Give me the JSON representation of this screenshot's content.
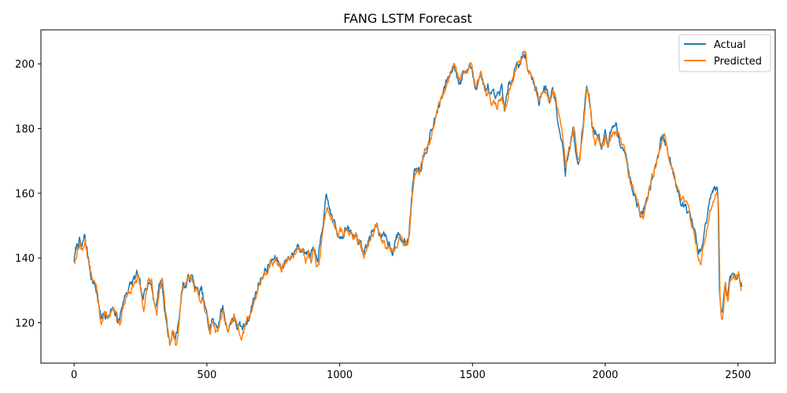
{
  "chart_data": {
    "type": "line",
    "title": "FANG LSTM Forecast",
    "xlabel": "",
    "ylabel": "",
    "xlim": [
      -125,
      2640
    ],
    "ylim": [
      107.5,
      210.5
    ],
    "xticks": [
      0,
      500,
      1000,
      1500,
      2000,
      2500
    ],
    "yticks": [
      120,
      140,
      160,
      180,
      200
    ],
    "grid": false,
    "legend_position": "top-right",
    "key_points": [
      [
        0,
        139
      ],
      [
        10,
        143
      ],
      [
        20,
        145
      ],
      [
        30,
        142
      ],
      [
        40,
        146
      ],
      [
        50,
        141
      ],
      [
        60,
        136
      ],
      [
        70,
        133
      ],
      [
        80,
        131
      ],
      [
        90,
        127
      ],
      [
        100,
        121
      ],
      [
        110,
        122
      ],
      [
        120,
        123
      ],
      [
        130,
        121
      ],
      [
        140,
        123
      ],
      [
        150,
        122
      ],
      [
        160,
        121
      ],
      [
        170,
        120
      ],
      [
        180,
        125
      ],
      [
        200,
        130
      ],
      [
        220,
        132
      ],
      [
        240,
        134
      ],
      [
        250,
        129
      ],
      [
        260,
        125
      ],
      [
        270,
        130
      ],
      [
        280,
        134
      ],
      [
        290,
        132
      ],
      [
        300,
        127
      ],
      [
        310,
        125
      ],
      [
        320,
        132
      ],
      [
        330,
        133
      ],
      [
        340,
        125
      ],
      [
        350,
        118
      ],
      [
        360,
        113
      ],
      [
        370,
        117
      ],
      [
        380,
        114
      ],
      [
        390,
        118
      ],
      [
        400,
        126
      ],
      [
        410,
        132
      ],
      [
        420,
        131
      ],
      [
        430,
        133
      ],
      [
        440,
        134
      ],
      [
        450,
        132
      ],
      [
        460,
        130
      ],
      [
        470,
        128
      ],
      [
        480,
        129
      ],
      [
        490,
        125
      ],
      [
        500,
        121
      ],
      [
        510,
        117
      ],
      [
        520,
        121
      ],
      [
        530,
        118
      ],
      [
        540,
        119
      ],
      [
        550,
        122
      ],
      [
        560,
        124
      ],
      [
        570,
        120
      ],
      [
        580,
        118
      ],
      [
        590,
        120
      ],
      [
        600,
        122
      ],
      [
        610,
        119
      ],
      [
        620,
        118
      ],
      [
        630,
        117
      ],
      [
        640,
        118
      ],
      [
        650,
        121
      ],
      [
        660,
        122
      ],
      [
        670,
        125
      ],
      [
        680,
        128
      ],
      [
        690,
        130
      ],
      [
        700,
        133
      ],
      [
        710,
        135
      ],
      [
        720,
        136
      ],
      [
        730,
        137
      ],
      [
        740,
        138
      ],
      [
        750,
        139
      ],
      [
        760,
        139
      ],
      [
        770,
        138
      ],
      [
        780,
        137
      ],
      [
        790,
        138
      ],
      [
        800,
        139
      ],
      [
        810,
        140
      ],
      [
        820,
        141
      ],
      [
        830,
        142
      ],
      [
        840,
        144
      ],
      [
        850,
        143
      ],
      [
        860,
        145
      ],
      [
        870,
        141
      ],
      [
        880,
        143
      ],
      [
        890,
        140
      ],
      [
        900,
        142
      ],
      [
        910,
        138
      ],
      [
        920,
        140
      ],
      [
        930,
        145
      ],
      [
        940,
        152
      ],
      [
        950,
        157
      ],
      [
        960,
        155
      ],
      [
        970,
        152
      ],
      [
        980,
        150
      ],
      [
        990,
        147
      ],
      [
        1000,
        148
      ],
      [
        1010,
        147
      ],
      [
        1020,
        149
      ],
      [
        1030,
        148
      ],
      [
        1040,
        147
      ],
      [
        1050,
        146
      ],
      [
        1060,
        147
      ],
      [
        1070,
        146
      ],
      [
        1080,
        143
      ],
      [
        1090,
        141
      ],
      [
        1100,
        143
      ],
      [
        1110,
        145
      ],
      [
        1120,
        147
      ],
      [
        1130,
        149
      ],
      [
        1140,
        150
      ],
      [
        1150,
        148
      ],
      [
        1160,
        146
      ],
      [
        1170,
        145
      ],
      [
        1180,
        145
      ],
      [
        1190,
        144
      ],
      [
        1200,
        143
      ],
      [
        1210,
        145
      ],
      [
        1220,
        147
      ],
      [
        1230,
        146
      ],
      [
        1240,
        144
      ],
      [
        1250,
        144
      ],
      [
        1260,
        146
      ],
      [
        1270,
        158
      ],
      [
        1280,
        167
      ],
      [
        1290,
        169
      ],
      [
        1300,
        168
      ],
      [
        1310,
        170
      ],
      [
        1320,
        173
      ],
      [
        1330,
        176
      ],
      [
        1340,
        178
      ],
      [
        1350,
        180
      ],
      [
        1360,
        183
      ],
      [
        1370,
        186
      ],
      [
        1380,
        188
      ],
      [
        1390,
        190
      ],
      [
        1400,
        193
      ],
      [
        1410,
        195
      ],
      [
        1420,
        197
      ],
      [
        1430,
        199
      ],
      [
        1440,
        197
      ],
      [
        1450,
        195
      ],
      [
        1460,
        196
      ],
      [
        1470,
        198
      ],
      [
        1480,
        197
      ],
      [
        1490,
        200
      ],
      [
        1500,
        196
      ],
      [
        1510,
        192
      ],
      [
        1520,
        195
      ],
      [
        1530,
        197
      ],
      [
        1540,
        194
      ],
      [
        1550,
        190
      ],
      [
        1560,
        192
      ],
      [
        1570,
        189
      ],
      [
        1580,
        188
      ],
      [
        1590,
        187
      ],
      [
        1600,
        189
      ],
      [
        1610,
        191
      ],
      [
        1620,
        186
      ],
      [
        1630,
        189
      ],
      [
        1640,
        193
      ],
      [
        1650,
        196
      ],
      [
        1660,
        199
      ],
      [
        1670,
        201
      ],
      [
        1680,
        200
      ],
      [
        1690,
        204
      ],
      [
        1700,
        202
      ],
      [
        1710,
        197
      ],
      [
        1720,
        195
      ],
      [
        1730,
        194
      ],
      [
        1740,
        192
      ],
      [
        1750,
        188
      ],
      [
        1760,
        191
      ],
      [
        1770,
        193
      ],
      [
        1780,
        191
      ],
      [
        1790,
        189
      ],
      [
        1800,
        192
      ],
      [
        1810,
        190
      ],
      [
        1820,
        185
      ],
      [
        1830,
        180
      ],
      [
        1840,
        175
      ],
      [
        1850,
        168
      ],
      [
        1860,
        172
      ],
      [
        1870,
        176
      ],
      [
        1880,
        180
      ],
      [
        1890,
        172
      ],
      [
        1900,
        168
      ],
      [
        1910,
        175
      ],
      [
        1920,
        185
      ],
      [
        1930,
        193
      ],
      [
        1940,
        188
      ],
      [
        1950,
        180
      ],
      [
        1960,
        177
      ],
      [
        1970,
        179
      ],
      [
        1980,
        176
      ],
      [
        1990,
        175
      ],
      [
        2000,
        178
      ],
      [
        2010,
        176
      ],
      [
        2020,
        178
      ],
      [
        2030,
        179
      ],
      [
        2040,
        180
      ],
      [
        2050,
        178
      ],
      [
        2060,
        175
      ],
      [
        2070,
        174
      ],
      [
        2080,
        170
      ],
      [
        2090,
        165
      ],
      [
        2100,
        162
      ],
      [
        2110,
        160
      ],
      [
        2120,
        158
      ],
      [
        2130,
        155
      ],
      [
        2140,
        153
      ],
      [
        2150,
        156
      ],
      [
        2160,
        159
      ],
      [
        2170,
        163
      ],
      [
        2180,
        167
      ],
      [
        2190,
        170
      ],
      [
        2200,
        173
      ],
      [
        2210,
        176
      ],
      [
        2220,
        177
      ],
      [
        2230,
        174
      ],
      [
        2240,
        170
      ],
      [
        2250,
        168
      ],
      [
        2260,
        165
      ],
      [
        2270,
        162
      ],
      [
        2280,
        160
      ],
      [
        2290,
        158
      ],
      [
        2300,
        156
      ],
      [
        2310,
        155
      ],
      [
        2320,
        152
      ],
      [
        2330,
        150
      ],
      [
        2340,
        146
      ],
      [
        2350,
        141
      ],
      [
        2360,
        140
      ],
      [
        2370,
        145
      ],
      [
        2380,
        150
      ],
      [
        2390,
        155
      ],
      [
        2400,
        158
      ],
      [
        2410,
        160
      ],
      [
        2420,
        161
      ],
      [
        2425,
        158
      ],
      [
        2430,
        130
      ],
      [
        2435,
        124
      ],
      [
        2440,
        122
      ],
      [
        2445,
        126
      ],
      [
        2450,
        132
      ],
      [
        2460,
        128
      ],
      [
        2470,
        134
      ],
      [
        2480,
        136
      ],
      [
        2490,
        134
      ],
      [
        2500,
        136
      ],
      [
        2510,
        132
      ],
      [
        2515,
        131
      ]
    ],
    "series": [
      {
        "name": "Actual",
        "color": "#1f77b4",
        "noise_amp": 1.2,
        "seed": 7,
        "shift": 0,
        "offset": 0.4
      },
      {
        "name": "Predicted",
        "color": "#ff7f0e",
        "noise_amp": 1.0,
        "seed": 13,
        "shift": 2,
        "offset": -0.3
      }
    ]
  }
}
